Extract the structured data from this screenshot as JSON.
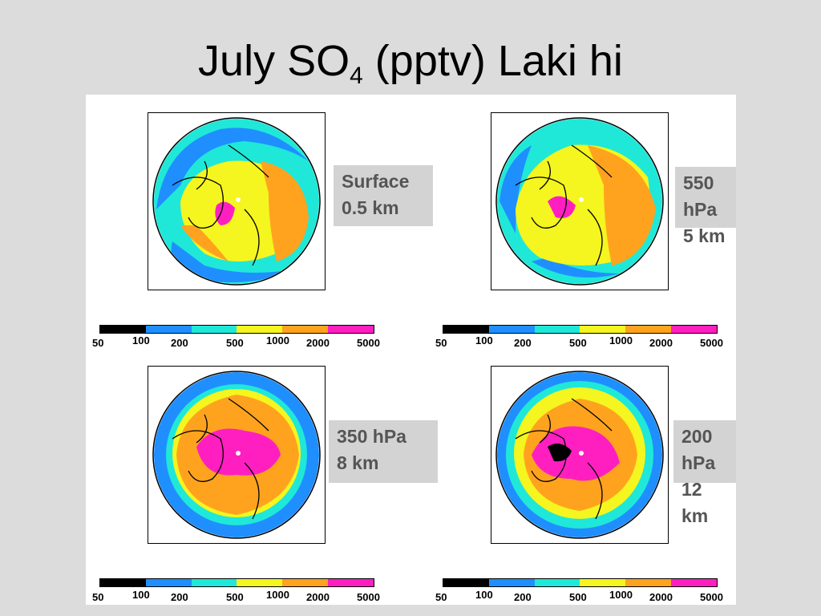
{
  "title": {
    "main": "July SO",
    "sub": "4",
    "rest": " (pptv) Laki hi"
  },
  "panels": [
    {
      "line1": "Surface",
      "line2": "0.5 km"
    },
    {
      "line1": "550 hPa",
      "line2": "5 km"
    },
    {
      "line1": "350 hPa",
      "line2": "8 km"
    },
    {
      "line1": "200 hPa",
      "line2": "12 km"
    }
  ],
  "colorbar": {
    "colors": [
      "#000000",
      "#1f8fff",
      "#1fe8d8",
      "#f5f51f",
      "#ffa31f",
      "#ff1fc0"
    ],
    "ticks": [
      "50",
      "100",
      "200",
      "500",
      "1000",
      "2000",
      "5000"
    ]
  }
}
